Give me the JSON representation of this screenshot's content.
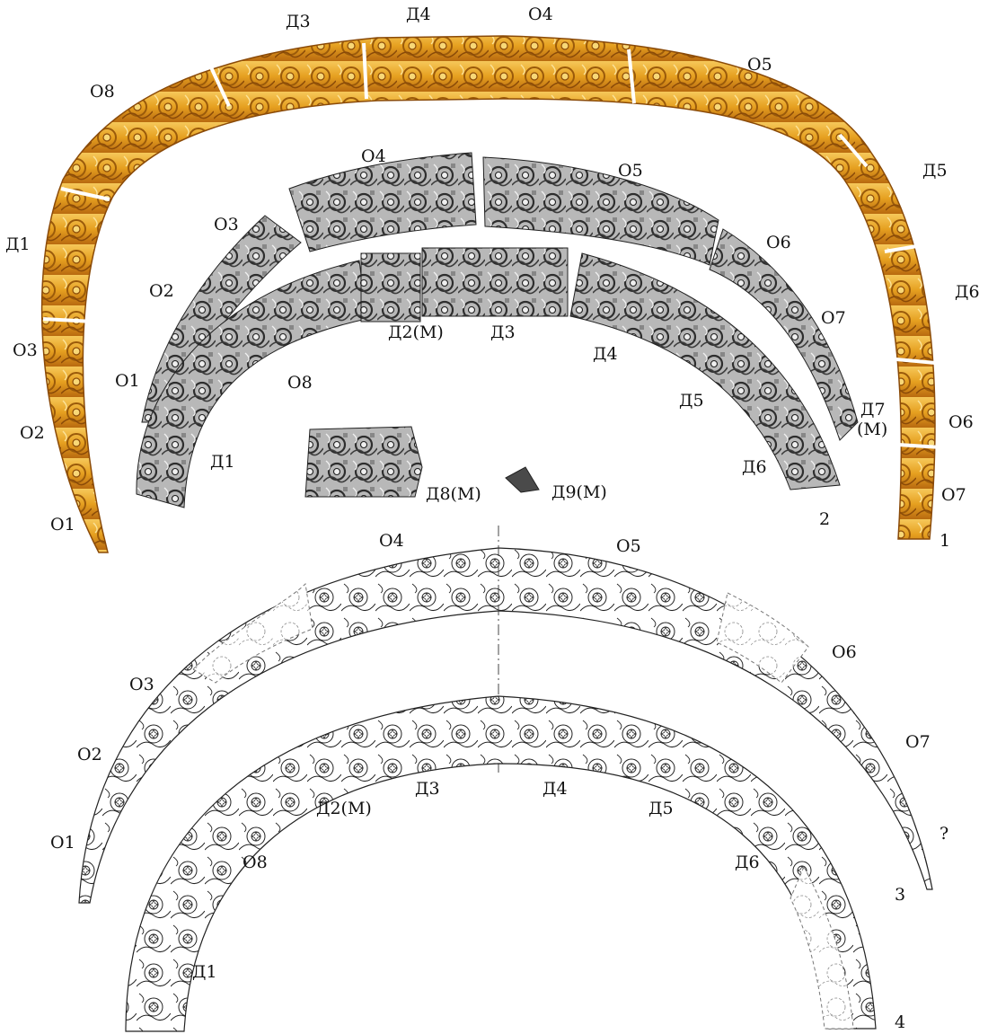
{
  "figure_numbers": {
    "f1": "1",
    "f2": "2",
    "f3": "3",
    "f4": "4"
  },
  "labels": {
    "g_d3": "Д3",
    "g_d4": "Д4",
    "g_o4": "О4",
    "g_o5": "О5",
    "g_o8": "О8",
    "g_d5": "Д5",
    "g_d1": "Д1",
    "g_d6": "Д6",
    "g_o3": "О3",
    "g_o6": "О6",
    "g_o2": "О2",
    "g_o7": "О7",
    "g_o1": "О1",
    "p_o4": "О4",
    "p_o5": "О5",
    "p_o3": "О3",
    "p_o6": "О6",
    "p_o2": "О2",
    "p_o7": "О7",
    "p_o1": "О1",
    "p_o8": "О8",
    "p_d2m": "Д2(М)",
    "p_d3": "Д3",
    "p_d4": "Д4",
    "p_d5": "Д5",
    "p_d7": "Д7",
    "p_d7m": "(М)",
    "p_d1": "Д1",
    "p_d6": "Д6",
    "p_d8m": "Д8(М)",
    "p_d9m": "Д9(М)",
    "o_o4": "О4",
    "o_o5": "О5",
    "o_o3": "О3",
    "o_o6": "О6",
    "o_o2": "О2",
    "o_o7": "О7",
    "o_o1": "О1",
    "o_q": "?",
    "i_d3": "Д3",
    "i_d4": "Д4",
    "i_d2m": "Д2(М)",
    "i_d5": "Д5",
    "i_o8": "О8",
    "i_d6": "Д6",
    "i_d1": "Д1"
  },
  "colors": {
    "gold": "#e6a020",
    "gold_dark": "#a8600c",
    "gold_light": "#f6c85a",
    "photo_dark": "#3a3a3a",
    "photo_mid": "#8c8c8c",
    "photo_light": "#d4d4d4",
    "line": "#222222"
  }
}
